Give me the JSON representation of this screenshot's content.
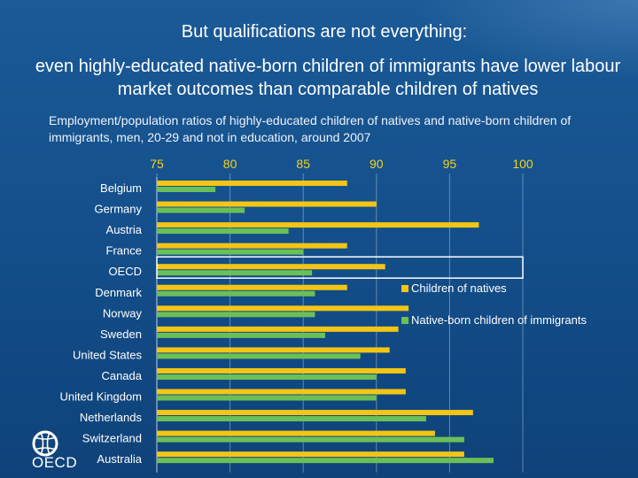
{
  "header": {
    "title": "But qualifications are not everything:",
    "subtitle": "even highly-educated native-born children of immigrants have lower labour market outcomes than comparable children of natives",
    "caption": "Employment/population ratios of highly-educated children of natives and native-born children of immigrants, men, 20-29 and not in education, around 2007"
  },
  "logo": {
    "icon": "oecd-logo-icon",
    "text": "OECD"
  },
  "colors": {
    "natives": "#f3c515",
    "immigrants": "#6bbf57",
    "tick": "#f3d21c",
    "gridline": "#ffffff"
  },
  "chart_data": {
    "type": "bar",
    "orientation": "horizontal",
    "categories": [
      "Belgium",
      "Germany",
      "Austria",
      "France",
      "OECD",
      "Denmark",
      "Norway",
      "Sweden",
      "United States",
      "Canada",
      "United Kingdom",
      "Netherlands",
      "Switzerland",
      "Australia"
    ],
    "series": [
      {
        "name": "Children of natives",
        "values": [
          88,
          90,
          97,
          88,
          90.6,
          88,
          92.2,
          91.5,
          90.9,
          92,
          92,
          96.6,
          94,
          96
        ]
      },
      {
        "name": "Native-born children of immigrants",
        "values": [
          79,
          81,
          84,
          85,
          85.6,
          85.8,
          85.8,
          86.5,
          88.9,
          90,
          90,
          93.4,
          96,
          98
        ]
      }
    ],
    "xlim": [
      75,
      100
    ],
    "xticks": [
      "75",
      "80",
      "85",
      "90",
      "95",
      "100"
    ],
    "highlighted_category": "OECD",
    "grid": true,
    "legend_position": "right"
  }
}
